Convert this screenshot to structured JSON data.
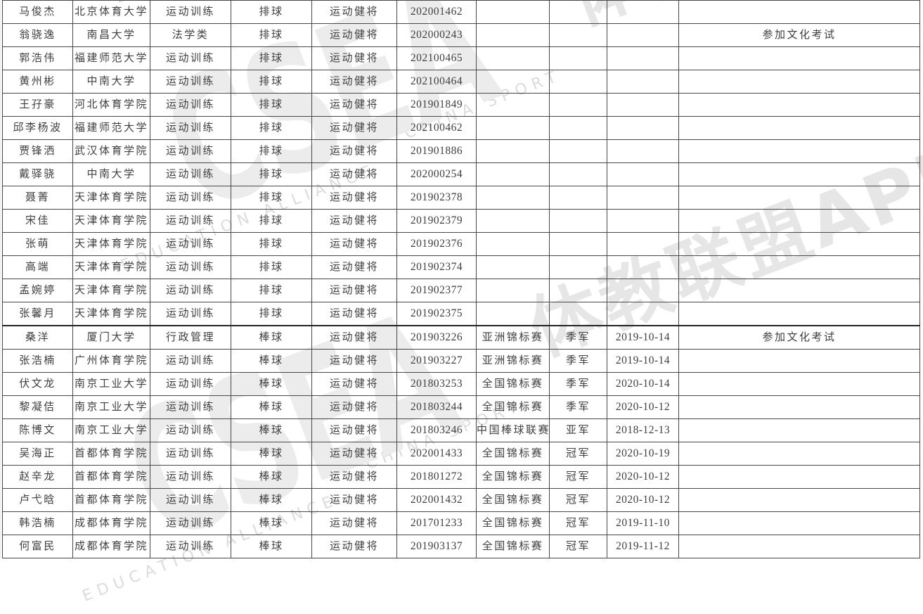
{
  "watermark": {
    "logo_text": "CSEA",
    "english_line1": "CHINA SPORT",
    "english_line2": "EDUCATION ALLIANCE",
    "cn_text": "体教联盟APP"
  },
  "table": {
    "rows": [
      [
        "马俊杰",
        "北京体育大学",
        "运动训练",
        "排球",
        "运动健将",
        "202001462",
        "",
        "",
        "",
        ""
      ],
      [
        "翁骁逸",
        "南昌大学",
        "法学类",
        "排球",
        "运动健将",
        "202000243",
        "",
        "",
        "",
        "参加文化考试"
      ],
      [
        "郭浩伟",
        "福建师范大学",
        "运动训练",
        "排球",
        "运动健将",
        "202100465",
        "",
        "",
        "",
        ""
      ],
      [
        "黄州彬",
        "中南大学",
        "运动训练",
        "排球",
        "运动健将",
        "202100464",
        "",
        "",
        "",
        ""
      ],
      [
        "王孖豪",
        "河北体育学院",
        "运动训练",
        "排球",
        "运动健将",
        "201901849",
        "",
        "",
        "",
        ""
      ],
      [
        "邱李杨波",
        "福建师范大学",
        "运动训练",
        "排球",
        "运动健将",
        "202100462",
        "",
        "",
        "",
        ""
      ],
      [
        "贾锋洒",
        "武汉体育学院",
        "运动训练",
        "排球",
        "运动健将",
        "201901886",
        "",
        "",
        "",
        ""
      ],
      [
        "戴驿骁",
        "中南大学",
        "运动训练",
        "排球",
        "运动健将",
        "202000254",
        "",
        "",
        "",
        ""
      ],
      [
        "聂菁",
        "天津体育学院",
        "运动训练",
        "排球",
        "运动健将",
        "201902378",
        "",
        "",
        "",
        ""
      ],
      [
        "宋佳",
        "天津体育学院",
        "运动训练",
        "排球",
        "运动健将",
        "201902379",
        "",
        "",
        "",
        ""
      ],
      [
        "张萌",
        "天津体育学院",
        "运动训练",
        "排球",
        "运动健将",
        "201902376",
        "",
        "",
        "",
        ""
      ],
      [
        "高端",
        "天津体育学院",
        "运动训练",
        "排球",
        "运动健将",
        "201902374",
        "",
        "",
        "",
        ""
      ],
      [
        "孟婉婷",
        "天津体育学院",
        "运动训练",
        "排球",
        "运动健将",
        "201902377",
        "",
        "",
        "",
        ""
      ],
      [
        "张馨月",
        "天津体育学院",
        "运动训练",
        "排球",
        "运动健将",
        "201902375",
        "",
        "",
        "",
        ""
      ],
      [
        "桑洋",
        "厦门大学",
        "行政管理",
        "棒球",
        "运动健将",
        "201903226",
        "亚洲锦标赛",
        "季军",
        "2019-10-14",
        "参加文化考试"
      ],
      [
        "张浩楠",
        "广州体育学院",
        "运动训练",
        "棒球",
        "运动健将",
        "201903227",
        "亚洲锦标赛",
        "季军",
        "2019-10-14",
        ""
      ],
      [
        "伏文龙",
        "南京工业大学",
        "运动训练",
        "棒球",
        "运动健将",
        "201803253",
        "全国锦标赛",
        "季军",
        "2020-10-14",
        ""
      ],
      [
        "黎凝佶",
        "南京工业大学",
        "运动训练",
        "棒球",
        "运动健将",
        "201803244",
        "全国锦标赛",
        "季军",
        "2020-10-12",
        ""
      ],
      [
        "陈博文",
        "南京工业大学",
        "运动训练",
        "棒球",
        "运动健将",
        "201803246",
        "中国棒球联赛",
        "亚军",
        "2018-12-13",
        ""
      ],
      [
        "吴海正",
        "首都体育学院",
        "运动训练",
        "棒球",
        "运动健将",
        "202001433",
        "全国锦标赛",
        "冠军",
        "2020-10-19",
        ""
      ],
      [
        "赵辛龙",
        "首都体育学院",
        "运动训练",
        "棒球",
        "运动健将",
        "201801272",
        "全国锦标赛",
        "冠军",
        "2020-10-12",
        ""
      ],
      [
        "卢弋晗",
        "首都体育学院",
        "运动训练",
        "棒球",
        "运动健将",
        "202001432",
        "全国锦标赛",
        "冠军",
        "2020-10-12",
        ""
      ],
      [
        "韩浩楠",
        "成都体育学院",
        "运动训练",
        "棒球",
        "运动健将",
        "201701233",
        "全国锦标赛",
        "冠军",
        "2019-11-10",
        ""
      ],
      [
        "何富民",
        "成都体育学院",
        "运动训练",
        "棒球",
        "运动健将",
        "201903137",
        "全国锦标赛",
        "冠军",
        "2019-11-12",
        ""
      ]
    ]
  }
}
